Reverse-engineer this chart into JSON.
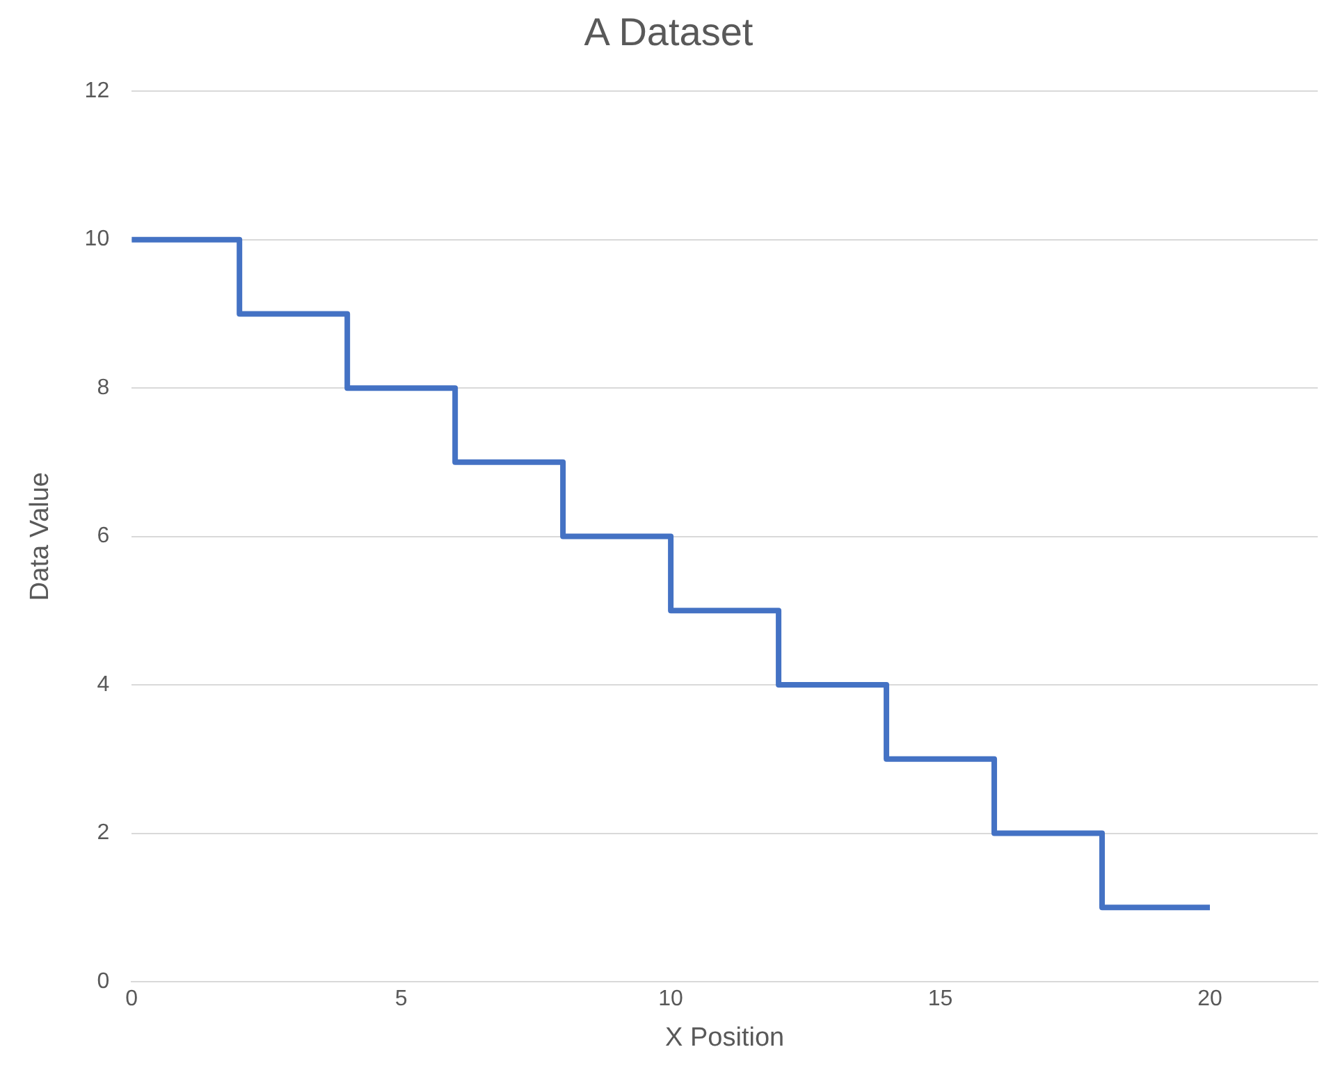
{
  "chart_data": {
    "type": "step",
    "title": "A Dataset",
    "xlabel": "X Position",
    "ylabel": "Data Value",
    "x": [
      0,
      2,
      4,
      6,
      8,
      10,
      12,
      14,
      16,
      18,
      20
    ],
    "values": [
      10,
      9,
      8,
      7,
      6,
      5,
      4,
      3,
      2,
      1,
      1
    ],
    "color": "#4472c4",
    "xlim": [
      0,
      22
    ],
    "xticks": [
      0,
      5,
      10,
      15,
      20
    ],
    "ylim": [
      0,
      12
    ],
    "yticks": [
      0,
      2,
      4,
      6,
      8,
      10,
      12
    ],
    "grid": "y"
  }
}
